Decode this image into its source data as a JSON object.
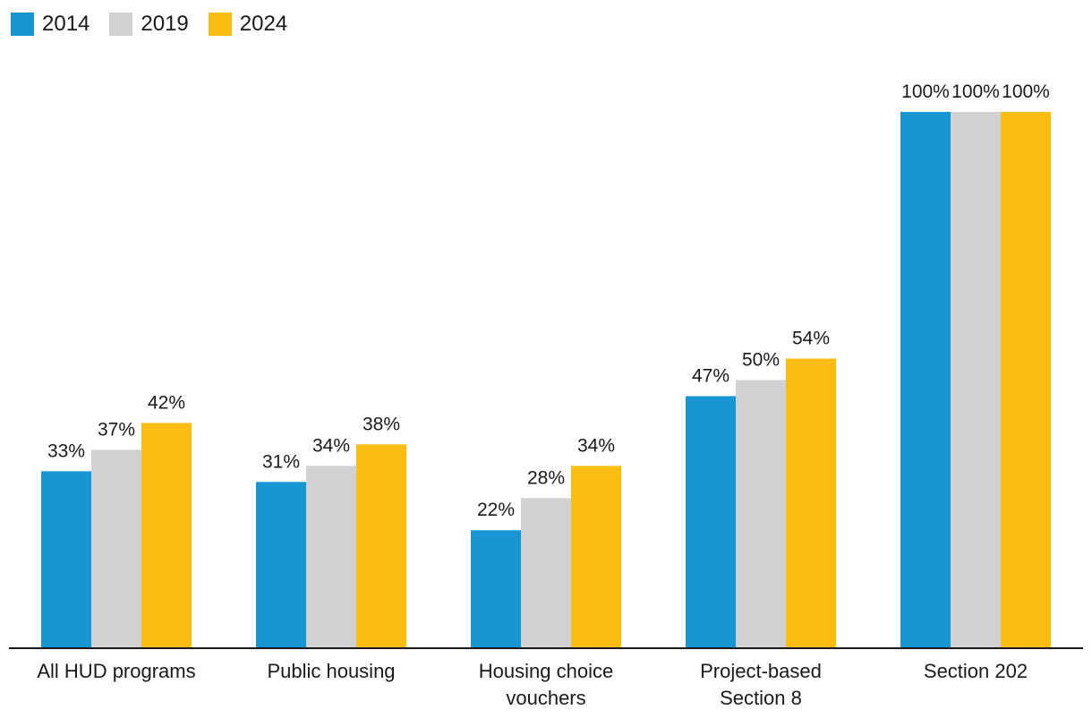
{
  "chart_data": {
    "type": "bar",
    "title": "",
    "xlabel": "",
    "ylabel": "",
    "ylim": [
      0,
      100
    ],
    "grid": false,
    "legend_position": "top-left",
    "categories": [
      [
        "All HUD programs"
      ],
      [
        "Public housing"
      ],
      [
        "Housing choice",
        "vouchers"
      ],
      [
        "Project-based",
        "Section 8"
      ],
      [
        "Section 202"
      ]
    ],
    "series": [
      {
        "name": "2014",
        "color": "#1896d4",
        "values": [
          33,
          31,
          22,
          47,
          100
        ],
        "labels": [
          "33%",
          "31%",
          "22%",
          "47%",
          "100%"
        ]
      },
      {
        "name": "2019",
        "color": "#d2d2d2",
        "values": [
          37,
          34,
          28,
          50,
          100
        ],
        "labels": [
          "37%",
          "34%",
          "28%",
          "50%",
          "100%"
        ]
      },
      {
        "name": "2024",
        "color": "#fbbd12",
        "values": [
          42,
          38,
          34,
          54,
          100
        ],
        "labels": [
          "42%",
          "38%",
          "34%",
          "54%",
          "100%"
        ]
      }
    ]
  }
}
